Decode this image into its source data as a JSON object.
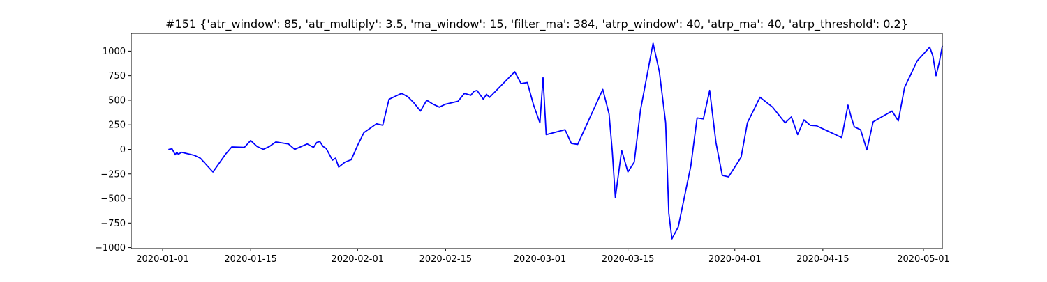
{
  "chart_data": {
    "type": "line",
    "title": "#151 {'atr_window': 85, 'atr_multiply': 3.5, 'ma_window': 15, 'filter_ma': 384, 'atrp_window': 40, 'atrp_ma': 40, 'atrp_threshold': 0.2}",
    "xlabel": "",
    "ylabel": "",
    "x_axis_type": "date",
    "xlim": [
      "2019-12-27",
      "2020-05-04"
    ],
    "ylim": [
      -1010,
      1180
    ],
    "x_ticks": [
      "2020-01-01",
      "2020-01-15",
      "2020-02-01",
      "2020-02-15",
      "2020-03-01",
      "2020-03-15",
      "2020-04-01",
      "2020-04-15",
      "2020-05-01"
    ],
    "y_ticks": [
      -1000,
      -750,
      -500,
      -250,
      0,
      250,
      500,
      750,
      1000
    ],
    "y_tick_labels": [
      "−1000",
      "−750",
      "−500",
      "−250",
      "0",
      "250",
      "500",
      "750",
      "1000"
    ],
    "grid": false,
    "series": [
      {
        "color": "#0000ff",
        "points": [
          [
            "2020-01-02",
            0
          ],
          [
            "2020-01-02 12:00",
            5
          ],
          [
            "2020-01-03",
            -55
          ],
          [
            "2020-01-03 06:00",
            -30
          ],
          [
            "2020-01-03 12:00",
            -50
          ],
          [
            "2020-01-04",
            -30
          ],
          [
            "2020-01-06",
            -60
          ],
          [
            "2020-01-07",
            -90
          ],
          [
            "2020-01-09",
            -230
          ],
          [
            "2020-01-11",
            -50
          ],
          [
            "2020-01-12",
            25
          ],
          [
            "2020-01-14",
            20
          ],
          [
            "2020-01-15",
            90
          ],
          [
            "2020-01-16",
            30
          ],
          [
            "2020-01-17",
            0
          ],
          [
            "2020-01-18",
            30
          ],
          [
            "2020-01-19",
            75
          ],
          [
            "2020-01-21",
            55
          ],
          [
            "2020-01-22",
            0
          ],
          [
            "2020-01-24",
            55
          ],
          [
            "2020-01-25",
            20
          ],
          [
            "2020-01-25 12:00",
            70
          ],
          [
            "2020-01-26",
            80
          ],
          [
            "2020-01-26 12:00",
            30
          ],
          [
            "2020-01-27",
            10
          ],
          [
            "2020-01-28",
            -110
          ],
          [
            "2020-01-28 12:00",
            -90
          ],
          [
            "2020-01-29",
            -180
          ],
          [
            "2020-01-30",
            -130
          ],
          [
            "2020-01-31",
            -105
          ],
          [
            "2020-02-01",
            40
          ],
          [
            "2020-02-02",
            170
          ],
          [
            "2020-02-04",
            260
          ],
          [
            "2020-02-05",
            245
          ],
          [
            "2020-02-06",
            510
          ],
          [
            "2020-02-08",
            570
          ],
          [
            "2020-02-09",
            535
          ],
          [
            "2020-02-10",
            470
          ],
          [
            "2020-02-11",
            390
          ],
          [
            "2020-02-12",
            500
          ],
          [
            "2020-02-13",
            460
          ],
          [
            "2020-02-14",
            430
          ],
          [
            "2020-02-15",
            460
          ],
          [
            "2020-02-17",
            490
          ],
          [
            "2020-02-18",
            570
          ],
          [
            "2020-02-19",
            550
          ],
          [
            "2020-02-19 12:00",
            590
          ],
          [
            "2020-02-20",
            600
          ],
          [
            "2020-02-21",
            510
          ],
          [
            "2020-02-21 12:00",
            560
          ],
          [
            "2020-02-22",
            530
          ],
          [
            "2020-02-26",
            790
          ],
          [
            "2020-02-27",
            670
          ],
          [
            "2020-02-28",
            680
          ],
          [
            "2020-02-29",
            450
          ],
          [
            "2020-03-01",
            270
          ],
          [
            "2020-03-01 12:00",
            730
          ],
          [
            "2020-03-02",
            150
          ],
          [
            "2020-03-05",
            200
          ],
          [
            "2020-03-06",
            60
          ],
          [
            "2020-03-07",
            50
          ],
          [
            "2020-03-11",
            610
          ],
          [
            "2020-03-12",
            360
          ],
          [
            "2020-03-12 12:00",
            -10
          ],
          [
            "2020-03-13",
            -490
          ],
          [
            "2020-03-14",
            -10
          ],
          [
            "2020-03-15",
            -230
          ],
          [
            "2020-03-16",
            -130
          ],
          [
            "2020-03-17",
            400
          ],
          [
            "2020-03-19",
            1080
          ],
          [
            "2020-03-20",
            790
          ],
          [
            "2020-03-21",
            270
          ],
          [
            "2020-03-21 12:00",
            -650
          ],
          [
            "2020-03-22",
            -910
          ],
          [
            "2020-03-23",
            -790
          ],
          [
            "2020-03-25",
            -170
          ],
          [
            "2020-03-26",
            320
          ],
          [
            "2020-03-27",
            310
          ],
          [
            "2020-03-28",
            600
          ],
          [
            "2020-03-29",
            70
          ],
          [
            "2020-03-30",
            -265
          ],
          [
            "2020-03-31",
            -280
          ],
          [
            "2020-04-02",
            -80
          ],
          [
            "2020-04-03",
            270
          ],
          [
            "2020-04-05",
            530
          ],
          [
            "2020-04-07",
            430
          ],
          [
            "2020-04-09",
            270
          ],
          [
            "2020-04-10",
            330
          ],
          [
            "2020-04-11",
            150
          ],
          [
            "2020-04-12",
            300
          ],
          [
            "2020-04-13",
            245
          ],
          [
            "2020-04-14",
            240
          ],
          [
            "2020-04-18",
            120
          ],
          [
            "2020-04-19",
            450
          ],
          [
            "2020-04-19 12:00",
            330
          ],
          [
            "2020-04-20",
            230
          ],
          [
            "2020-04-21",
            200
          ],
          [
            "2020-04-22",
            -5
          ],
          [
            "2020-04-23",
            280
          ],
          [
            "2020-04-26",
            390
          ],
          [
            "2020-04-27",
            290
          ],
          [
            "2020-04-28",
            630
          ],
          [
            "2020-04-30",
            900
          ],
          [
            "2020-05-02",
            1040
          ],
          [
            "2020-05-02 12:00",
            950
          ],
          [
            "2020-05-03",
            750
          ],
          [
            "2020-05-03 12:00",
            880
          ],
          [
            "2020-05-04",
            1050
          ]
        ]
      }
    ]
  }
}
